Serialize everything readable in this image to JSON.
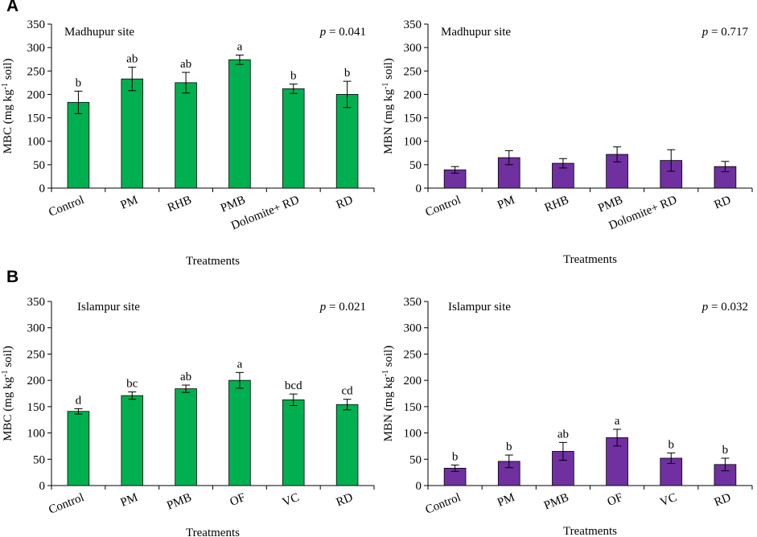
{
  "panels": [
    {
      "letter": "A"
    },
    {
      "letter": "B"
    }
  ],
  "chart_data": [
    {
      "type": "bar",
      "panel": "A",
      "site": "Madhupur site",
      "p_label": "p",
      "p_value": " = 0.041",
      "ylabel_main": "MBC (mg kg",
      "ylabel_sup": "-1",
      "ylabel_tail": " soil)",
      "xlabel": "Treatments",
      "ylim": [
        0,
        350
      ],
      "yticks": [
        "0",
        "50",
        "100",
        "150",
        "200",
        "250",
        "300",
        "350"
      ],
      "categories": [
        "Control",
        "PM",
        "RHB",
        "PMB",
        "Dolomite+ RD",
        "RD"
      ],
      "values": [
        183,
        233,
        225,
        274,
        212,
        200
      ],
      "errors": [
        24,
        25,
        22,
        10,
        10,
        28
      ],
      "letters": [
        "b",
        "ab",
        "ab",
        "a",
        "b",
        "b"
      ],
      "color": "#00B050"
    },
    {
      "type": "bar",
      "panel": "A",
      "site": "Madhupur site",
      "p_label": "p",
      "p_value": " = 0.717",
      "ylabel_main": "MBN (mg kg",
      "ylabel_sup": "-1",
      "ylabel_tail": " soil)",
      "xlabel": "Treatments",
      "ylim": [
        0,
        350
      ],
      "yticks": [
        "0",
        "50",
        "100",
        "150",
        "200",
        "250",
        "300",
        "350"
      ],
      "categories": [
        "Control",
        "PM",
        "RHB",
        "PMB",
        "Dolomite+ RD",
        "RD"
      ],
      "values": [
        39,
        65,
        53,
        72,
        59,
        46
      ],
      "errors": [
        7,
        15,
        10,
        16,
        23,
        11
      ],
      "letters": [
        "",
        "",
        "",
        "",
        "",
        ""
      ],
      "color": "#7030A0"
    },
    {
      "type": "bar",
      "panel": "B",
      "site": "Islampur site",
      "p_label": "p",
      "p_value": " = 0.021",
      "ylabel_main": "MBC (mg kg",
      "ylabel_sup": "-1",
      "ylabel_tail": " soil)",
      "xlabel": "Treatments",
      "ylim": [
        0,
        350
      ],
      "yticks": [
        "0",
        "50",
        "100",
        "150",
        "200",
        "250",
        "300",
        "350"
      ],
      "categories": [
        "Control",
        "PM",
        "PMB",
        "OF",
        "VC",
        "RD"
      ],
      "values": [
        141,
        171,
        184,
        200,
        163,
        154
      ],
      "errors": [
        5,
        7,
        7,
        15,
        11,
        10
      ],
      "letters": [
        "d",
        "bc",
        "ab",
        "a",
        "bcd",
        "cd"
      ],
      "color": "#00B050"
    },
    {
      "type": "bar",
      "panel": "B",
      "site": "Islampur site",
      "p_label": "p",
      "p_value": " = 0.032",
      "ylabel_main": "MBN (mg kg",
      "ylabel_sup": "-1",
      "ylabel_tail": " soil)",
      "xlabel": "Treatments",
      "ylim": [
        0,
        350
      ],
      "yticks": [
        "0",
        "50",
        "100",
        "150",
        "200",
        "250",
        "300",
        "350"
      ],
      "categories": [
        "Control",
        "PM",
        "PMB",
        "OF",
        "VC",
        "RD"
      ],
      "values": [
        33,
        46,
        65,
        91,
        52,
        40
      ],
      "errors": [
        6,
        12,
        17,
        16,
        10,
        12
      ],
      "letters": [
        "b",
        "b",
        "ab",
        "a",
        "b",
        "b"
      ],
      "color": "#7030A0"
    }
  ]
}
